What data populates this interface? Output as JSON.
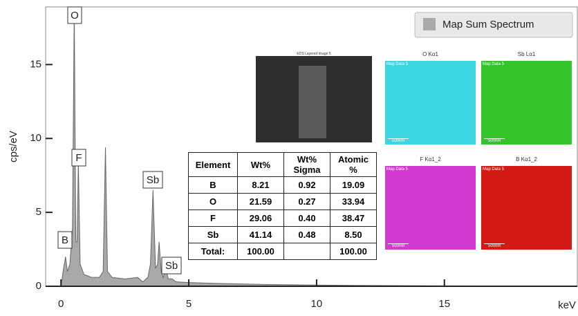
{
  "chart_data": {
    "type": "area",
    "x_label": "keV",
    "y_label": "cps/eV",
    "x": [
      0,
      0.1,
      0.18,
      0.25,
      0.35,
      0.45,
      0.52,
      0.58,
      0.63,
      0.68,
      0.75,
      0.9,
      1.2,
      1.5,
      1.65,
      1.74,
      1.82,
      2.0,
      2.5,
      3.0,
      3.2,
      3.4,
      3.5,
      3.6,
      3.7,
      3.78,
      3.84,
      3.92,
      4.0,
      4.1,
      4.2,
      4.35,
      4.5,
      5,
      6,
      8,
      10,
      12,
      15,
      18,
      20
    ],
    "series": [
      {
        "name": "Map Sum Spectrum",
        "color": "#a9a9a9",
        "values": [
          0,
          1.2,
          2.0,
          1.0,
          1.5,
          4,
          18.9,
          3,
          3,
          8.4,
          1.5,
          0.8,
          0.6,
          0.6,
          1.0,
          9.4,
          1.0,
          0.6,
          0.5,
          0.6,
          0.3,
          0.6,
          1.5,
          6.5,
          1.2,
          1.5,
          3.0,
          1.0,
          0.6,
          1.2,
          0.5,
          0.5,
          0.3,
          0.25,
          0.2,
          0.12,
          0.08,
          0.05,
          0.03,
          0.02,
          0.02
        ]
      }
    ],
    "annotations": [
      "O",
      "F",
      "B",
      "Sb",
      "Sb"
    ],
    "xlim": [
      -0.6,
      20.2
    ],
    "ylim": [
      0,
      18.9
    ],
    "xticks": [
      0,
      5,
      10,
      15
    ],
    "yticks": [
      0,
      5,
      10,
      15
    ]
  },
  "image": {
    "title": "EDS Layered Image 5"
  },
  "table": {
    "header": [
      "Element",
      "Wt%",
      "Wt% Sigma",
      "Atomic %"
    ],
    "rows": [
      [
        "B",
        "8.21",
        "0.92",
        "19.09"
      ],
      [
        "O",
        "21.59",
        "0.27",
        "33.94"
      ],
      [
        "F",
        "29.06",
        "0.40",
        "38.47"
      ],
      [
        "Sb",
        "41.14",
        "0.48",
        "8.50"
      ],
      [
        "Total:",
        "100.00",
        "",
        "100.00"
      ]
    ]
  },
  "maps": [
    {
      "title": "O Kα1",
      "label": "Map Data 5",
      "scale": "500nm",
      "color": "#3cd6e0"
    },
    {
      "title": "Sb Lα1",
      "label": "Map Data 5",
      "scale": "500nm",
      "color": "#33c42a"
    },
    {
      "title": "F Kα1_2",
      "label": "Map Data 5",
      "scale": "500nm",
      "color": "#d23ad2"
    },
    {
      "title": "B Kα1_2",
      "label": "Map Data 5",
      "scale": "500nm",
      "color": "#d41a14"
    }
  ]
}
